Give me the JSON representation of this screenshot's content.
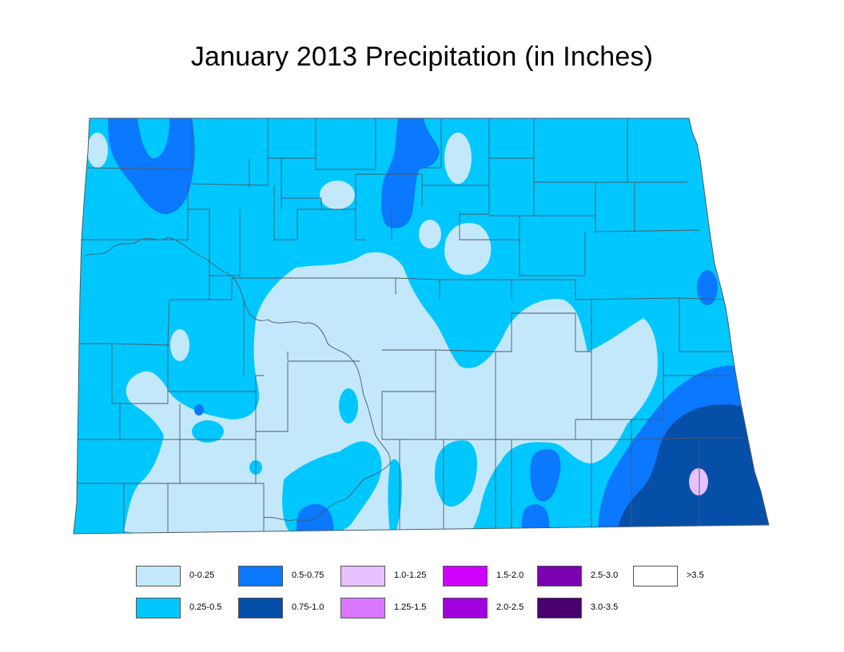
{
  "title": "January 2013 Precipitation (in Inches)",
  "colors": {
    "c0_025": "#c4e8fb",
    "c025_05": "#00c8ff",
    "c05_075": "#0a78ff",
    "c075_10": "#064fa8",
    "c10_125": "#e6c0ff",
    "c125_15": "#d978ff",
    "c15_20": "#d000ff",
    "c20_25": "#a000e0",
    "c25_30": "#7a00b0",
    "c30_35": "#4a006e",
    "c_gt35": "#ffffff",
    "county_line": "#4d5a66"
  },
  "legend": [
    {
      "label": "0-0.25",
      "color": "#c4e8fb"
    },
    {
      "label": "0.25-0.5",
      "color": "#00c8ff"
    },
    {
      "label": "0.5-0.75",
      "color": "#0a78ff"
    },
    {
      "label": "0.75-1.0",
      "color": "#064fa8"
    },
    {
      "label": "1.0-1.25",
      "color": "#e6c0ff"
    },
    {
      "label": "1.25-1.5",
      "color": "#d978ff"
    },
    {
      "label": "1.5-2.0",
      "color": "#d000ff"
    },
    {
      "label": "2.0-2.5",
      "color": "#a000e0"
    },
    {
      "label": "2.5-3.0",
      "color": "#7a00b0"
    },
    {
      "label": "3.0-3.5",
      "color": "#4a006e"
    },
    {
      "label": ">3.5",
      "color": "#ffffff"
    }
  ]
}
